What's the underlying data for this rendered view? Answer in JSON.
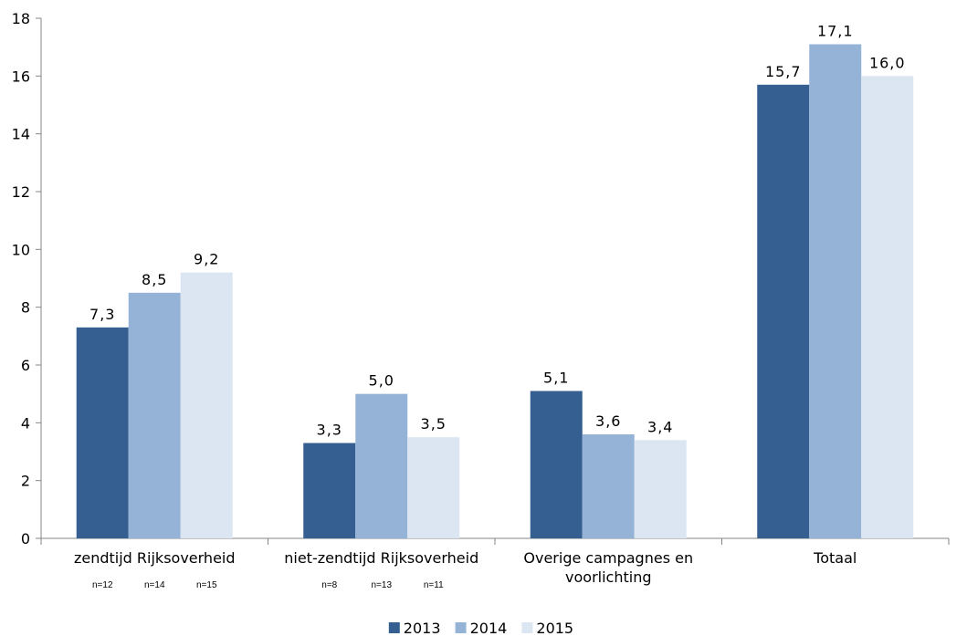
{
  "chart_data": {
    "type": "bar",
    "categories": [
      [
        "zendtijd Rijksoverheid"
      ],
      [
        "niet-zendtijd Rijksoverheid"
      ],
      [
        "Overige campagnes en",
        "voorlichting"
      ],
      [
        "Totaal"
      ]
    ],
    "series": [
      {
        "name": "2013",
        "color": "#355E91",
        "values": [
          7.3,
          3.3,
          5.1,
          15.7
        ],
        "labels": [
          "7,3",
          "3,3",
          "5,1",
          "15,7"
        ]
      },
      {
        "name": "2014",
        "color": "#95B3D7",
        "values": [
          8.5,
          5.0,
          3.6,
          17.1
        ],
        "labels": [
          "8,5",
          "5,0",
          "3,6",
          "17,1"
        ]
      },
      {
        "name": "2015",
        "color": "#DCE6F2",
        "values": [
          9.2,
          3.5,
          3.4,
          16.0
        ],
        "labels": [
          "9,2",
          "3,5",
          "3,4",
          "16,0"
        ]
      }
    ],
    "n_labels": [
      [
        "n=12",
        "n=14",
        "n=15"
      ],
      [
        "n=8",
        "n=13",
        "n=11"
      ],
      [],
      []
    ],
    "ylim": [
      0,
      18
    ],
    "yticks": [
      0,
      2,
      4,
      6,
      8,
      10,
      12,
      14,
      16,
      18
    ],
    "legend_position": "bottom-center",
    "grid": false
  }
}
